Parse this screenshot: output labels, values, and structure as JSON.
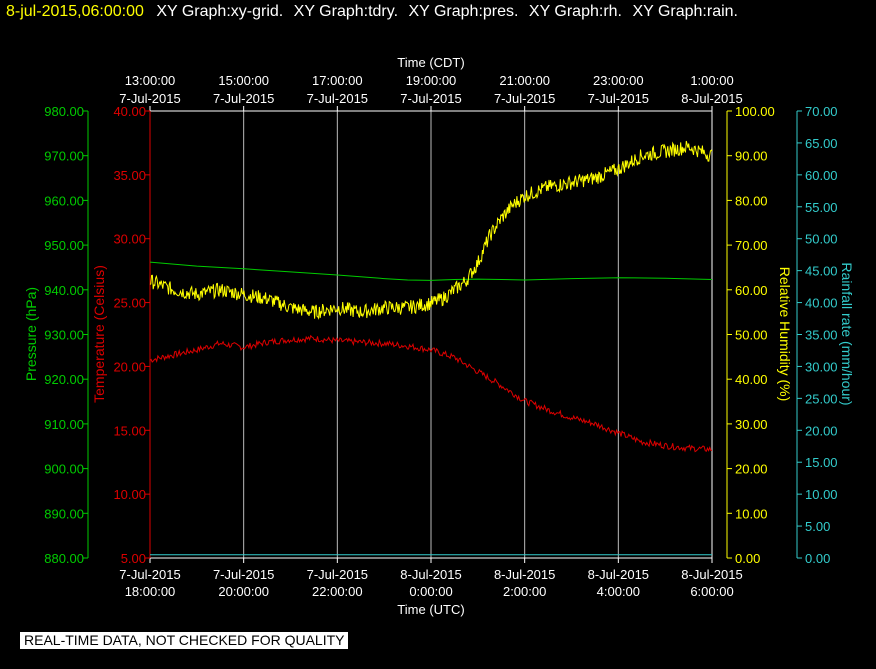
{
  "header": {
    "timestamp": "8-jul-2015,06:00:00",
    "titles": [
      "XY Graph:xy-grid.",
      "XY Graph:tdry.",
      "XY Graph:pres.",
      "XY Graph:rh.",
      "XY Graph:rain."
    ]
  },
  "footer": {
    "notice": "REAL-TIME DATA, NOT CHECKED FOR QUALITY"
  },
  "colors": {
    "pressure": "#00cc00",
    "temperature": "#dd0000",
    "humidity": "#ffff00",
    "rain": "#33cccc",
    "axis": "#ffffff",
    "grid": "#bbbbbb"
  },
  "chart_data": {
    "type": "line",
    "x_unit": "hours",
    "x_range": [
      18,
      30
    ],
    "top_axis": {
      "title": "Time (CDT)",
      "ticks": [
        {
          "x": 18,
          "time": "13:00:00",
          "date": "7-Jul-2015"
        },
        {
          "x": 20,
          "time": "15:00:00",
          "date": "7-Jul-2015"
        },
        {
          "x": 22,
          "time": "17:00:00",
          "date": "7-Jul-2015"
        },
        {
          "x": 24,
          "time": "19:00:00",
          "date": "7-Jul-2015"
        },
        {
          "x": 26,
          "time": "21:00:00",
          "date": "7-Jul-2015"
        },
        {
          "x": 28,
          "time": "23:00:00",
          "date": "7-Jul-2015"
        },
        {
          "x": 30,
          "time": "1:00:00",
          "date": "8-Jul-2015"
        }
      ]
    },
    "bottom_axis": {
      "title": "Time (UTC)",
      "ticks": [
        {
          "x": 18,
          "date": "7-Jul-2015",
          "time": "18:00:00"
        },
        {
          "x": 20,
          "date": "7-Jul-2015",
          "time": "20:00:00"
        },
        {
          "x": 22,
          "date": "7-Jul-2015",
          "time": "22:00:00"
        },
        {
          "x": 24,
          "date": "8-Jul-2015",
          "time": "0:00:00"
        },
        {
          "x": 26,
          "date": "8-Jul-2015",
          "time": "2:00:00"
        },
        {
          "x": 28,
          "date": "8-Jul-2015",
          "time": "4:00:00"
        },
        {
          "x": 30,
          "date": "8-Jul-2015",
          "time": "6:00:00"
        }
      ]
    },
    "pressure_axis": {
      "label": "Pressure (hPa)",
      "range": [
        880,
        980
      ],
      "ticks": [
        "880.00",
        "890.00",
        "900.00",
        "910.00",
        "920.00",
        "930.00",
        "940.00",
        "950.00",
        "960.00",
        "970.00",
        "980.00"
      ]
    },
    "temperature_axis": {
      "label": "Temperature (Celsius)",
      "range": [
        5,
        40
      ],
      "ticks": [
        "5.00",
        "10.00",
        "15.00",
        "20.00",
        "25.00",
        "30.00",
        "35.00",
        "40.00"
      ]
    },
    "humidity_axis": {
      "label": "Relative Humidity (%)",
      "range": [
        0,
        100
      ],
      "ticks": [
        "0.00",
        "10.00",
        "20.00",
        "30.00",
        "40.00",
        "50.00",
        "60.00",
        "70.00",
        "80.00",
        "90.00",
        "100.00"
      ]
    },
    "rain_axis": {
      "label": "Rainfall rate (mm/hour)",
      "range": [
        0,
        70
      ],
      "ticks": [
        "0.00",
        "5.00",
        "10.00",
        "15.00",
        "20.00",
        "25.00",
        "30.00",
        "35.00",
        "40.00",
        "45.00",
        "50.00",
        "55.00",
        "60.00",
        "65.00",
        "70.00"
      ]
    },
    "series": [
      {
        "name": "pressure",
        "axis": "pressure_axis",
        "x": [
          18,
          19,
          20,
          21,
          22,
          23,
          23.5,
          24,
          24.5,
          25,
          25.5,
          26,
          27,
          28,
          29,
          30
        ],
        "y": [
          946.2,
          945.3,
          944.7,
          944.0,
          943.3,
          942.5,
          942.2,
          942.1,
          942.3,
          942.4,
          942.3,
          942.2,
          942.5,
          942.7,
          942.6,
          942.3
        ]
      },
      {
        "name": "temperature",
        "axis": "temperature_axis",
        "x": [
          18,
          18.5,
          19,
          19.5,
          20,
          20.5,
          21,
          21.5,
          22,
          22.5,
          23,
          23.5,
          24,
          24.5,
          25,
          25.5,
          26,
          26.5,
          27,
          27.5,
          28,
          28.5,
          29,
          29.5,
          30
        ],
        "y": [
          20.5,
          20.9,
          21.3,
          21.8,
          21.5,
          21.9,
          22.1,
          22.2,
          22.0,
          21.9,
          21.8,
          21.6,
          21.3,
          20.7,
          19.6,
          18.5,
          17.3,
          16.6,
          16.0,
          15.5,
          14.8,
          14.1,
          13.8,
          13.6,
          13.5
        ]
      },
      {
        "name": "humidity",
        "axis": "humidity_axis",
        "x": [
          18,
          18.5,
          19,
          19.5,
          20,
          20.5,
          21,
          21.5,
          22,
          22.5,
          23,
          23.5,
          24,
          24.25,
          24.5,
          24.75,
          25,
          25.25,
          25.5,
          25.75,
          26,
          26.5,
          27,
          27.5,
          28,
          28.5,
          29,
          29.5,
          30
        ],
        "y": [
          62,
          60,
          59,
          60,
          59,
          58,
          56,
          55,
          56,
          55,
          56,
          56,
          57,
          58,
          60,
          62,
          66,
          72,
          76,
          79,
          81,
          83,
          84,
          85,
          87,
          90,
          91,
          92,
          90
        ],
        "noise": 1.6
      },
      {
        "name": "rain",
        "axis": "rain_axis",
        "x": [
          18,
          30
        ],
        "y": [
          0.5,
          0.5
        ]
      }
    ]
  }
}
